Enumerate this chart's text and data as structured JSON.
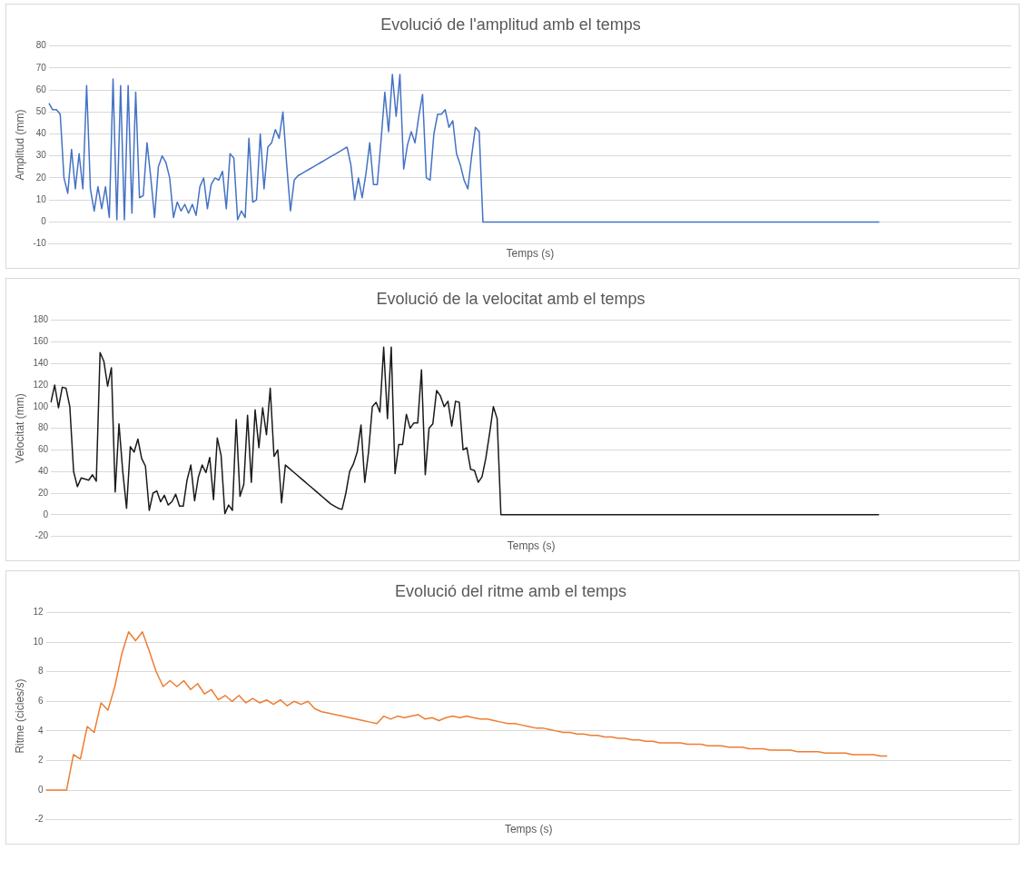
{
  "chart_data": [
    {
      "type": "line",
      "title": "Evolució de l'amplitud amb el temps",
      "xlabel": "Temps (s)",
      "ylabel": "Amplitud (mm)",
      "ylim": [
        -10,
        80
      ],
      "yticks": [
        -10,
        0,
        10,
        20,
        30,
        40,
        50,
        60,
        70,
        80
      ],
      "grid": "y",
      "tick_labels": "y",
      "categories": [
        null,
        null,
        null,
        null,
        null,
        null,
        null,
        null,
        null,
        null,
        null,
        null,
        null,
        null,
        null,
        null,
        null,
        null,
        null,
        null,
        null,
        null,
        null,
        null,
        null,
        null,
        null,
        null,
        null,
        null,
        null,
        null,
        null,
        null,
        null,
        null,
        null,
        null,
        null,
        null,
        null,
        null,
        null,
        null,
        null,
        null,
        null,
        null,
        null,
        null,
        null,
        null,
        null,
        null,
        null,
        null,
        null,
        null,
        null,
        null,
        null,
        null,
        null,
        null,
        null,
        null,
        null,
        null,
        null,
        null,
        null,
        null,
        null,
        null,
        null,
        null,
        null,
        null,
        null,
        null,
        null,
        null,
        null,
        null,
        null,
        null,
        null,
        null,
        null,
        null,
        null,
        null,
        null,
        null,
        null,
        null,
        null,
        null,
        null,
        null,
        null,
        null,
        null,
        null,
        null,
        null,
        null,
        null,
        null,
        null,
        null,
        null,
        null,
        null,
        null,
        null,
        null,
        null,
        null,
        null,
        null,
        null,
        null,
        null,
        null,
        null,
        null,
        null,
        null,
        null,
        null,
        null,
        null,
        null,
        null,
        null,
        null,
        null,
        null,
        null,
        null,
        null,
        null,
        null,
        null,
        null,
        null,
        null,
        null,
        null,
        null,
        null,
        null,
        null,
        null,
        null,
        null,
        null,
        null,
        null,
        null,
        null,
        null,
        null,
        null,
        null,
        null,
        null,
        null,
        null,
        null,
        null,
        null,
        null,
        null,
        null,
        null,
        null,
        null,
        null,
        null,
        null,
        null,
        null,
        null,
        null,
        null,
        null,
        null,
        null,
        null,
        null,
        null,
        null,
        null,
        null,
        null,
        null,
        null,
        null,
        null,
        null,
        null,
        null,
        null,
        null,
        null,
        null,
        null,
        null,
        null,
        null,
        null,
        null,
        null,
        null,
        null,
        null,
        null,
        null,
        null,
        null,
        null,
        null,
        null,
        null,
        null,
        null,
        null,
        null,
        null,
        null,
        null,
        null,
        null,
        null,
        null,
        null,
        null,
        null,
        null,
        null,
        null,
        null,
        null,
        null,
        null,
        null,
        null,
        null,
        null,
        null,
        null,
        null,
        null,
        null
      ],
      "series": [
        {
          "color": "#4472c4",
          "values": [
            54,
            51,
            51,
            49,
            20,
            13,
            33,
            15,
            31,
            15,
            62,
            15,
            5,
            16,
            6,
            16,
            2,
            65,
            1,
            62,
            1,
            62,
            4,
            59,
            11,
            12,
            36,
            20,
            2,
            25,
            30,
            27,
            20,
            2,
            9,
            5,
            8,
            4,
            8,
            3,
            16,
            20,
            6,
            17,
            20,
            19,
            23,
            6,
            31,
            29,
            1,
            5,
            2,
            38,
            9,
            10,
            40,
            15,
            34,
            36,
            42,
            38,
            50,
            26,
            5,
            19,
            21,
            22,
            23,
            24,
            25,
            26,
            27,
            28,
            29,
            30,
            31,
            32,
            33,
            34,
            26,
            10,
            20,
            11,
            22,
            36,
            17,
            17,
            37,
            59,
            41,
            67,
            48,
            67,
            24,
            35,
            41,
            36,
            48,
            58,
            20,
            19,
            40,
            49,
            49,
            51,
            43,
            46,
            31,
            26,
            19,
            15,
            30,
            43,
            41,
            0,
            0,
            0,
            0,
            0,
            0,
            0,
            0,
            0,
            0,
            0,
            0,
            0,
            0,
            0,
            0,
            0,
            0,
            0,
            0,
            0,
            0,
            0,
            0,
            0,
            0,
            0,
            0,
            0,
            0,
            0,
            0,
            0,
            0,
            0,
            0,
            0,
            0,
            0,
            0,
            0,
            0,
            0,
            0,
            0,
            0,
            0,
            0,
            0,
            0,
            0,
            0,
            0,
            0,
            0,
            0,
            0,
            0,
            0,
            0,
            0,
            0,
            0,
            0,
            0,
            0,
            0,
            0,
            0,
            0,
            0,
            0,
            0,
            0,
            0,
            0,
            0,
            0,
            0,
            0,
            0,
            0,
            0,
            0,
            0,
            0,
            0,
            0,
            0,
            0,
            0,
            0,
            0,
            0,
            0,
            0,
            0,
            0,
            0,
            0,
            0,
            0,
            0,
            0,
            0,
            0,
            null,
            null,
            null,
            null,
            null,
            null,
            null,
            null,
            null,
            null,
            null,
            null,
            null,
            null,
            null,
            null,
            null,
            null,
            null,
            null,
            null,
            null,
            null,
            null,
            null,
            null,
            null,
            null,
            null,
            null,
            null,
            null,
            null,
            null,
            null
          ]
        }
      ]
    },
    {
      "type": "line",
      "title": "Evolució de la velocitat amb el temps",
      "xlabel": "Temps (s)",
      "ylabel": "Velocitat (mm)",
      "ylim": [
        -20,
        180
      ],
      "yticks": [
        -20,
        0,
        20,
        40,
        60,
        80,
        100,
        120,
        140,
        160,
        180
      ],
      "grid": "y",
      "tick_labels": "y",
      "categories": [
        null,
        null,
        null,
        null,
        null,
        null,
        null,
        null,
        null,
        null,
        null,
        null,
        null,
        null,
        null,
        null,
        null,
        null,
        null,
        null,
        null,
        null,
        null,
        null,
        null,
        null,
        null,
        null,
        null,
        null,
        null,
        null,
        null,
        null,
        null,
        null,
        null,
        null,
        null,
        null,
        null,
        null,
        null,
        null,
        null,
        null,
        null,
        null,
        null,
        null,
        null,
        null,
        null,
        null,
        null,
        null,
        null,
        null,
        null,
        null,
        null,
        null,
        null,
        null,
        null,
        null,
        null,
        null,
        null,
        null,
        null,
        null,
        null,
        null,
        null,
        null,
        null,
        null,
        null,
        null,
        null,
        null,
        null,
        null,
        null,
        null,
        null,
        null,
        null,
        null,
        null,
        null,
        null,
        null,
        null,
        null,
        null,
        null,
        null,
        null,
        null,
        null,
        null,
        null,
        null,
        null,
        null,
        null,
        null,
        null,
        null,
        null,
        null,
        null,
        null,
        null,
        null,
        null,
        null,
        null,
        null,
        null,
        null,
        null,
        null,
        null,
        null,
        null,
        null,
        null,
        null,
        null,
        null,
        null,
        null,
        null,
        null,
        null,
        null,
        null,
        null,
        null,
        null,
        null,
        null,
        null,
        null,
        null,
        null,
        null,
        null,
        null,
        null,
        null,
        null,
        null,
        null,
        null,
        null,
        null,
        null,
        null,
        null,
        null,
        null,
        null,
        null,
        null,
        null,
        null,
        null,
        null,
        null,
        null,
        null,
        null,
        null,
        null,
        null,
        null,
        null,
        null,
        null,
        null,
        null,
        null,
        null,
        null,
        null,
        null,
        null,
        null,
        null,
        null,
        null,
        null,
        null,
        null,
        null,
        null,
        null,
        null,
        null,
        null,
        null,
        null,
        null,
        null,
        null,
        null,
        null,
        null,
        null,
        null,
        null,
        null,
        null,
        null,
        null,
        null,
        null,
        null,
        null,
        null,
        null,
        null,
        null,
        null,
        null,
        null,
        null,
        null,
        null,
        null,
        null,
        null,
        null,
        null,
        null,
        null,
        null,
        null,
        null,
        null,
        null,
        null,
        null,
        null,
        null,
        null,
        null,
        null,
        null,
        null,
        null
      ],
      "series": [
        {
          "color": "#1a1a1a",
          "values": [
            104,
            120,
            99,
            118,
            117,
            100,
            40,
            26,
            34,
            33,
            32,
            37,
            31,
            150,
            142,
            119,
            136,
            21,
            84,
            40,
            6,
            63,
            58,
            70,
            52,
            45,
            4,
            20,
            22,
            12,
            18,
            9,
            12,
            19,
            8,
            8,
            32,
            46,
            13,
            35,
            46,
            39,
            53,
            14,
            71,
            55,
            1,
            9,
            4,
            88,
            17,
            28,
            92,
            30,
            97,
            62,
            99,
            74,
            117,
            54,
            60,
            11,
            46,
            43,
            40,
            37,
            34,
            31,
            28,
            25,
            22,
            19,
            16,
            13,
            10,
            8,
            6,
            5,
            20,
            40,
            47,
            58,
            83,
            30,
            58,
            100,
            104,
            95,
            155,
            89,
            155,
            38,
            65,
            65,
            93,
            80,
            85,
            85,
            134,
            37,
            80,
            84,
            115,
            110,
            100,
            105,
            82,
            105,
            104,
            60,
            62,
            42,
            41,
            30,
            35,
            52,
            75,
            100,
            89,
            0,
            0,
            0,
            0,
            0,
            0,
            0,
            0,
            0,
            0,
            0,
            0,
            0,
            0,
            0,
            0,
            0,
            0,
            0,
            0,
            0,
            0,
            0,
            0,
            0,
            0,
            0,
            0,
            0,
            0,
            0,
            0,
            0,
            0,
            0,
            0,
            0,
            0,
            0,
            0,
            0,
            0,
            0,
            0,
            0,
            0,
            0,
            0,
            0,
            0,
            0,
            0,
            0,
            0,
            0,
            0,
            0,
            0,
            0,
            0,
            0,
            0,
            0,
            0,
            0,
            0,
            0,
            0,
            0,
            0,
            0,
            0,
            0,
            0,
            0,
            0,
            0,
            0,
            0,
            0,
            0,
            0,
            0,
            0,
            0,
            0,
            0,
            0,
            0,
            0,
            0,
            0,
            0,
            0,
            0,
            0,
            0,
            0,
            0,
            0,
            0,
            null,
            null,
            null,
            null,
            null,
            null,
            null,
            null,
            null,
            null,
            null,
            null,
            null,
            null,
            null,
            null,
            null,
            null,
            null,
            null,
            null,
            null,
            null,
            null,
            null,
            null,
            null,
            null,
            null,
            null,
            null,
            null,
            null,
            null,
            null
          ]
        }
      ]
    },
    {
      "type": "line",
      "title": "Evolució del ritme amb el temps",
      "xlabel": "Temps (s)",
      "ylabel": "Ritme (cicles/s)",
      "ylim": [
        -2,
        12
      ],
      "yticks": [
        -2,
        0,
        2,
        4,
        6,
        8,
        10,
        12
      ],
      "grid": "y",
      "tick_labels": "y",
      "categories": [
        null,
        null,
        null,
        null,
        null,
        null,
        null,
        null,
        null,
        null,
        null,
        null,
        null,
        null,
        null,
        null,
        null,
        null,
        null,
        null,
        null,
        null,
        null,
        null,
        null,
        null,
        null,
        null,
        null,
        null,
        null,
        null,
        null,
        null,
        null,
        null,
        null,
        null,
        null,
        null,
        null,
        null,
        null,
        null,
        null,
        null,
        null,
        null,
        null,
        null,
        null,
        null,
        null,
        null,
        null,
        null,
        null,
        null,
        null,
        null,
        null,
        null,
        null,
        null,
        null,
        null,
        null,
        null,
        null,
        null,
        null,
        null,
        null,
        null,
        null,
        null,
        null,
        null,
        null,
        null,
        null,
        null,
        null,
        null,
        null,
        null,
        null,
        null,
        null,
        null,
        null,
        null,
        null,
        null,
        null,
        null,
        null,
        null,
        null,
        null,
        null,
        null,
        null,
        null,
        null,
        null,
        null,
        null,
        null,
        null,
        null,
        null,
        null,
        null,
        null,
        null,
        null,
        null,
        null,
        null,
        null,
        null,
        null,
        null,
        null,
        null,
        null,
        null,
        null,
        null,
        null,
        null,
        null,
        null,
        null,
        null,
        null,
        null,
        null,
        null,
        null
      ],
      "series": [
        {
          "color": "#ed7d31",
          "values": [
            0,
            0,
            0,
            0,
            2.4,
            2.1,
            4.3,
            3.9,
            5.9,
            5.4,
            7,
            9.2,
            10.7,
            10.1,
            10.7,
            9.4,
            8,
            7,
            7.4,
            7,
            7.4,
            6.8,
            7.2,
            6.5,
            6.8,
            6.1,
            6.4,
            6.0,
            6.4,
            5.9,
            6.2,
            5.9,
            6.1,
            5.8,
            6.1,
            5.7,
            6.0,
            5.8,
            6.0,
            5.5,
            5.3,
            5.2,
            5.1,
            5.0,
            4.9,
            4.8,
            4.7,
            4.6,
            4.5,
            5.0,
            4.8,
            5.0,
            4.9,
            5.0,
            5.1,
            4.8,
            4.9,
            4.7,
            4.9,
            5.0,
            4.9,
            5.0,
            4.9,
            4.8,
            4.8,
            4.7,
            4.6,
            4.5,
            4.5,
            4.4,
            4.3,
            4.2,
            4.2,
            4.1,
            4.0,
            3.9,
            3.9,
            3.8,
            3.8,
            3.7,
            3.7,
            3.6,
            3.6,
            3.5,
            3.5,
            3.4,
            3.4,
            3.3,
            3.3,
            3.2,
            3.2,
            3.2,
            3.2,
            3.1,
            3.1,
            3.1,
            3.0,
            3.0,
            3.0,
            2.9,
            2.9,
            2.9,
            2.8,
            2.8,
            2.8,
            2.7,
            2.7,
            2.7,
            2.7,
            2.6,
            2.6,
            2.6,
            2.6,
            2.5,
            2.5,
            2.5,
            2.5,
            2.4,
            2.4,
            2.4,
            2.4,
            2.3,
            2.3,
            null,
            null,
            null,
            null,
            null,
            null,
            null,
            null,
            null,
            null,
            null,
            null,
            null,
            null,
            null,
            null,
            null,
            null
          ]
        }
      ]
    }
  ]
}
